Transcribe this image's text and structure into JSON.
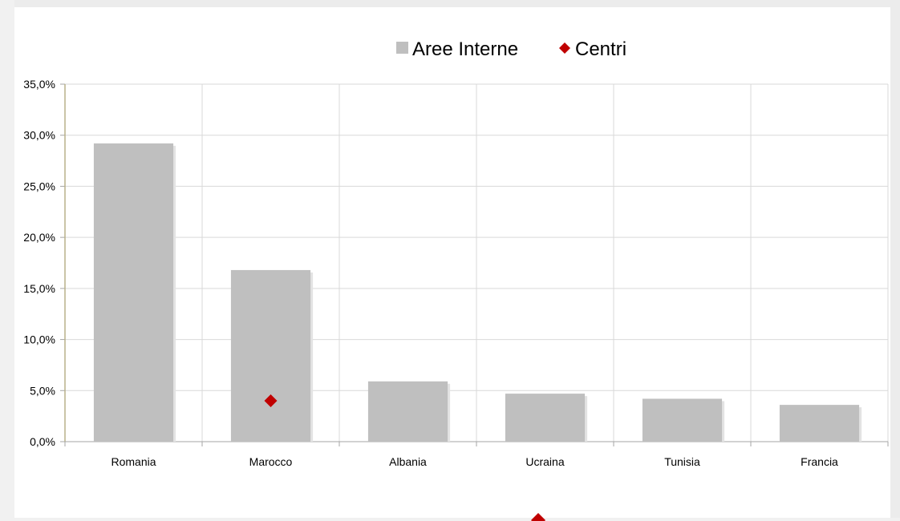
{
  "chart_data": {
    "type": "bar",
    "title": "",
    "xlabel": "",
    "ylabel": "",
    "categories": [
      "Romania",
      "Marocco",
      "Albania",
      "Ucraina",
      "Tunisia",
      "Francia"
    ],
    "series": [
      {
        "name": "Aree Interne",
        "type": "bar",
        "values": [
          29.2,
          16.8,
          5.9,
          4.7,
          4.2,
          3.6
        ],
        "color": "#bfbfbf"
      },
      {
        "name": "Centri",
        "type": "scatter",
        "marker": "diamond",
        "values": [
          null,
          4.0,
          null,
          null,
          null,
          null
        ],
        "color": "#c00000"
      }
    ],
    "ylim": [
      0,
      35
    ],
    "y_ticks": [
      "0,0%",
      "5,0%",
      "10,0%",
      "15,0%",
      "20,0%",
      "25,0%",
      "30,0%",
      "35,0%"
    ],
    "y_tick_values": [
      0,
      5,
      10,
      15,
      20,
      25,
      30,
      35
    ],
    "grid": true,
    "legend_position": "top-center"
  }
}
